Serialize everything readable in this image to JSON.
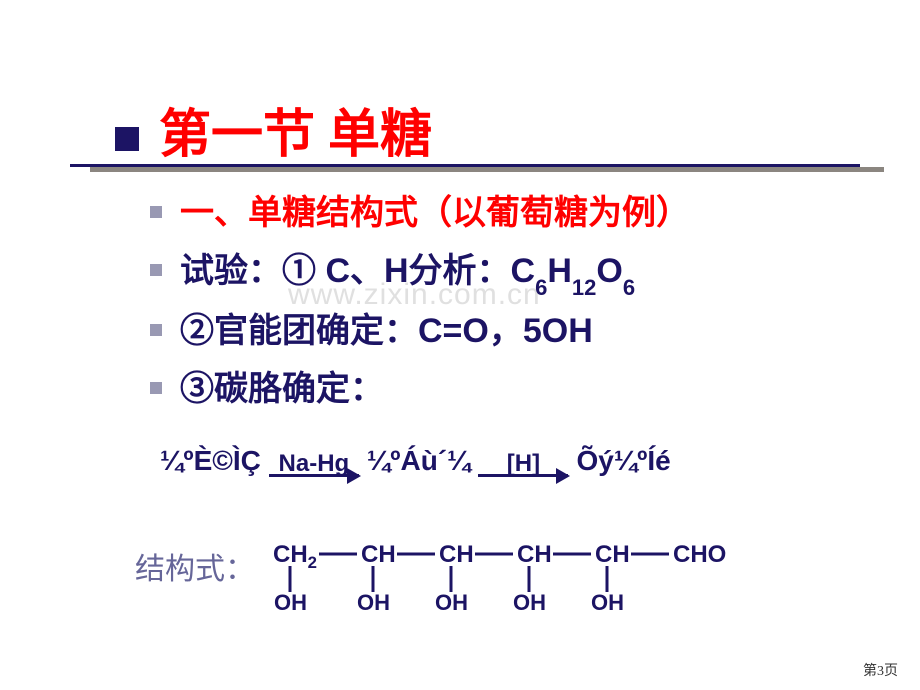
{
  "title": "第一节  单糖",
  "lines": {
    "l1": "一、单糖结构式（以葡萄糖为例）",
    "l2_prefix": "试验：① C、H分析：C",
    "l2_s1": "6",
    "l2_mid": "H",
    "l2_s2": "12",
    "l2_mid2": "O",
    "l2_s3": "6",
    "l3": "②官能团确定：C=O，5OH",
    "l4": "③碳胳确定："
  },
  "watermark": "www.zixin.com.cn",
  "reaction": {
    "r1": "¼ºÈ©ÌÇ",
    "a1": "Na-Hg",
    "r2": "¼ºÁù´¼",
    "a2": "[H]",
    "r3": "Õý¼ºÍé"
  },
  "structure": {
    "label": "结构式：",
    "groups": [
      "CH₂",
      "CH",
      "CH",
      "CH",
      "CH",
      "CHO"
    ],
    "oh": "OH",
    "color": "#1c1464",
    "font_size_main": 24,
    "font_size_oh": 22,
    "bond_length": 38,
    "vbond_length": 26
  },
  "page_num": "第3页",
  "colors": {
    "title_red": "#ff0000",
    "navy": "#1c1464",
    "bullet": "#9999b3",
    "shadow": "#8b8680",
    "struct_label": "#666699",
    "watermark": "#e0e0e0",
    "bg": "#ffffff"
  }
}
